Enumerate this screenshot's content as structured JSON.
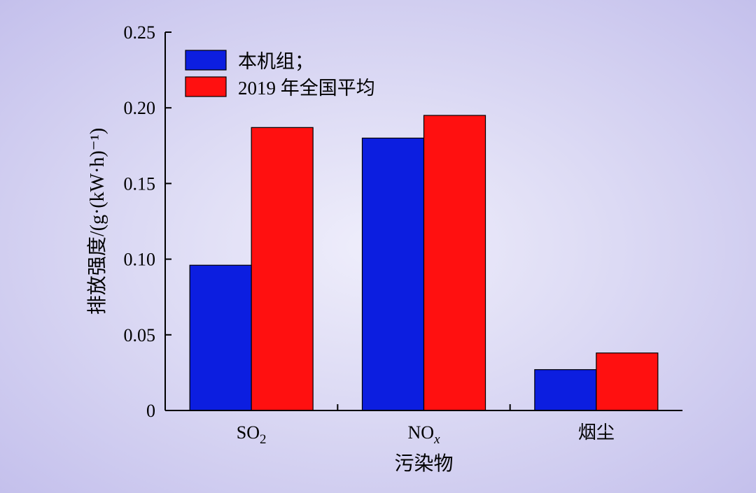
{
  "chart_data": {
    "type": "bar",
    "categories": [
      "SO₂",
      "NOₓ",
      "烟尘"
    ],
    "series": [
      {
        "name": "本机组；",
        "color": "#0c1ee0",
        "values": [
          0.096,
          0.18,
          0.027
        ]
      },
      {
        "name": "2019 年全国平均",
        "color": "#ff1010",
        "values": [
          0.187,
          0.195,
          0.038
        ]
      }
    ],
    "xlabel": "污染物",
    "ylabel": "排放强度/(g·(kW·h)⁻¹)",
    "ylim": [
      0,
      0.25
    ],
    "yticks": [
      {
        "value": 0,
        "label": "0"
      },
      {
        "value": 0.05,
        "label": "0.05"
      },
      {
        "value": 0.1,
        "label": "0.10"
      },
      {
        "value": 0.15,
        "label": "0.15"
      },
      {
        "value": 0.2,
        "label": "0.20"
      },
      {
        "value": 0.25,
        "label": "0.25"
      }
    ],
    "grid": false,
    "legend_position": "top-left"
  }
}
